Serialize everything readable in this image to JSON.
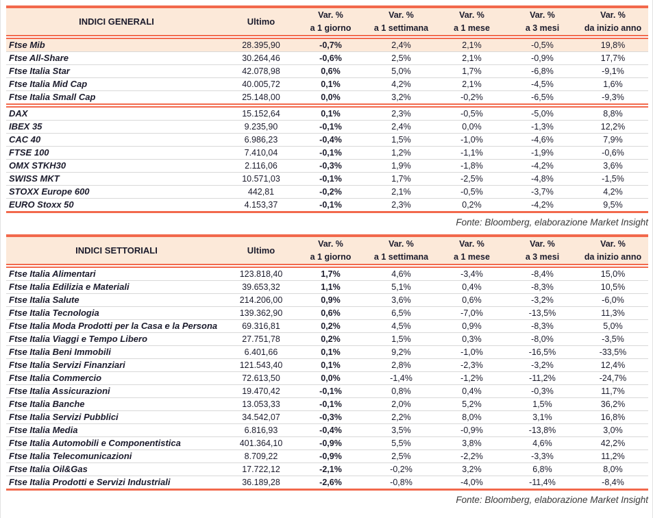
{
  "colors": {
    "accent": "#F2694C",
    "band": "#FCE9D9",
    "separator": "#D8D8D8",
    "text": "#1B1B2C"
  },
  "var_headers": [
    {
      "top": "Var. %",
      "bottom": "a 1 giorno"
    },
    {
      "top": "Var. %",
      "bottom": "a 1 settimana"
    },
    {
      "top": "Var. %",
      "bottom": "a 1 mese"
    },
    {
      "top": "Var. %",
      "bottom": "a 3 mesi"
    },
    {
      "top": "Var. %",
      "bottom": "da inizio anno"
    }
  ],
  "tables": [
    {
      "title": "INDICI GENERALI",
      "ultimo_label": "Ultimo",
      "source": "Fonte: Bloomberg, elaborazione Market Insight",
      "groups": [
        {
          "rows": [
            {
              "name": "Ftse Mib",
              "ultimo": "28.395,90",
              "values": [
                "-0,7%",
                "2,4%",
                "2,1%",
                "-0,5%",
                "19,8%"
              ],
              "highlight": true
            },
            {
              "name": "Ftse All-Share",
              "ultimo": "30.264,46",
              "values": [
                "-0,6%",
                "2,5%",
                "2,1%",
                "-0,9%",
                "17,7%"
              ]
            },
            {
              "name": "Ftse Italia Star",
              "ultimo": "42.078,98",
              "values": [
                "0,6%",
                "5,0%",
                "1,7%",
                "-6,8%",
                "-9,1%"
              ]
            },
            {
              "name": "Ftse Italia Mid Cap",
              "ultimo": "40.005,72",
              "values": [
                "0,1%",
                "4,2%",
                "2,1%",
                "-4,5%",
                "1,6%"
              ]
            },
            {
              "name": "Ftse Italia Small Cap",
              "ultimo": "25.148,00",
              "values": [
                "0,0%",
                "3,2%",
                "-0,2%",
                "-6,5%",
                "-9,3%"
              ]
            }
          ]
        },
        {
          "rows": [
            {
              "name": "DAX",
              "ultimo": "15.152,64",
              "values": [
                "0,1%",
                "2,3%",
                "-0,5%",
                "-5,0%",
                "8,8%"
              ]
            },
            {
              "name": "IBEX 35",
              "ultimo": "9.235,90",
              "values": [
                "-0,1%",
                "2,4%",
                "0,0%",
                "-1,3%",
                "12,2%"
              ]
            },
            {
              "name": "CAC 40",
              "ultimo": "6.986,23",
              "values": [
                "-0,4%",
                "1,5%",
                "-1,0%",
                "-4,6%",
                "7,9%"
              ]
            },
            {
              "name": "FTSE 100",
              "ultimo": "7.410,04",
              "values": [
                "-0,1%",
                "1,2%",
                "-1,1%",
                "-1,9%",
                "-0,6%"
              ]
            },
            {
              "name": "OMX STKH30",
              "ultimo": "2.116,06",
              "values": [
                "-0,3%",
                "1,9%",
                "-1,8%",
                "-4,2%",
                "3,6%"
              ]
            },
            {
              "name": "SWISS MKT",
              "ultimo": "10.571,03",
              "values": [
                "-0,1%",
                "1,7%",
                "-2,5%",
                "-4,8%",
                "-1,5%"
              ]
            },
            {
              "name": "STOXX Europe 600",
              "ultimo": "442,81",
              "values": [
                "-0,2%",
                "2,1%",
                "-0,5%",
                "-3,7%",
                "4,2%"
              ]
            },
            {
              "name": "EURO Stoxx 50",
              "ultimo": "4.153,37",
              "values": [
                "-0,1%",
                "2,3%",
                "0,2%",
                "-4,2%",
                "9,5%"
              ]
            }
          ]
        }
      ]
    },
    {
      "title": "INDICI SETTORIALI",
      "ultimo_label": "Ultimo",
      "source": "Fonte: Bloomberg, elaborazione Market Insight",
      "groups": [
        {
          "rows": [
            {
              "name": "Ftse Italia Alimentari",
              "ultimo": "123.818,40",
              "values": [
                "1,7%",
                "4,6%",
                "-3,4%",
                "-8,4%",
                "15,0%"
              ]
            },
            {
              "name": "Ftse Italia Edilizia e Materiali",
              "ultimo": "39.653,32",
              "values": [
                "1,1%",
                "5,1%",
                "0,4%",
                "-8,3%",
                "10,5%"
              ]
            },
            {
              "name": "Ftse Italia Salute",
              "ultimo": "214.206,00",
              "values": [
                "0,9%",
                "3,6%",
                "0,6%",
                "-3,2%",
                "-6,0%"
              ]
            },
            {
              "name": "Ftse Italia Tecnologia",
              "ultimo": "139.362,90",
              "values": [
                "0,6%",
                "6,5%",
                "-7,0%",
                "-13,5%",
                "11,3%"
              ]
            },
            {
              "name": "Ftse Italia Moda Prodotti per la Casa e la Persona",
              "ultimo": "69.316,81",
              "values": [
                "0,2%",
                "4,5%",
                "0,9%",
                "-8,3%",
                "5,0%"
              ]
            },
            {
              "name": "Ftse Italia Viaggi e Tempo Libero",
              "ultimo": "27.751,78",
              "values": [
                "0,2%",
                "1,5%",
                "0,3%",
                "-8,0%",
                "-3,5%"
              ]
            },
            {
              "name": "Ftse Italia Beni Immobili",
              "ultimo": "6.401,66",
              "values": [
                "0,1%",
                "9,2%",
                "-1,0%",
                "-16,5%",
                "-33,5%"
              ]
            },
            {
              "name": "Ftse Italia Servizi Finanziari",
              "ultimo": "121.543,40",
              "values": [
                "0,1%",
                "2,8%",
                "-2,3%",
                "-3,2%",
                "12,4%"
              ]
            },
            {
              "name": "Ftse Italia Commercio",
              "ultimo": "72.613,50",
              "values": [
                "0,0%",
                "-1,4%",
                "-1,2%",
                "-11,2%",
                "-24,7%"
              ]
            },
            {
              "name": "Ftse Italia Assicurazioni",
              "ultimo": "19.470,42",
              "values": [
                "-0,1%",
                "0,8%",
                "0,4%",
                "-0,3%",
                "11,7%"
              ]
            },
            {
              "name": "Ftse Italia Banche",
              "ultimo": "13.053,33",
              "values": [
                "-0,1%",
                "2,0%",
                "5,2%",
                "1,5%",
                "36,2%"
              ]
            },
            {
              "name": "Ftse Italia Servizi Pubblici",
              "ultimo": "34.542,07",
              "values": [
                "-0,3%",
                "2,2%",
                "8,0%",
                "3,1%",
                "16,8%"
              ]
            },
            {
              "name": "Ftse Italia Media",
              "ultimo": "6.816,93",
              "values": [
                "-0,4%",
                "3,5%",
                "-0,9%",
                "-13,8%",
                "3,0%"
              ]
            },
            {
              "name": "Ftse Italia Automobili e Componentistica",
              "ultimo": "401.364,10",
              "values": [
                "-0,9%",
                "5,5%",
                "3,8%",
                "4,6%",
                "42,2%"
              ]
            },
            {
              "name": "Ftse Italia Telecomunicazioni",
              "ultimo": "8.709,22",
              "values": [
                "-0,9%",
                "2,5%",
                "-2,2%",
                "-3,3%",
                "11,2%"
              ]
            },
            {
              "name": "Ftse Italia Oil&Gas",
              "ultimo": "17.722,12",
              "values": [
                "-2,1%",
                "-0,2%",
                "3,2%",
                "6,8%",
                "8,0%"
              ]
            },
            {
              "name": "Ftse Italia Prodotti e Servizi Industriali",
              "ultimo": "36.189,28",
              "values": [
                "-2,6%",
                "-0,8%",
                "-4,0%",
                "-11,4%",
                "-8,4%"
              ]
            }
          ]
        }
      ]
    }
  ]
}
